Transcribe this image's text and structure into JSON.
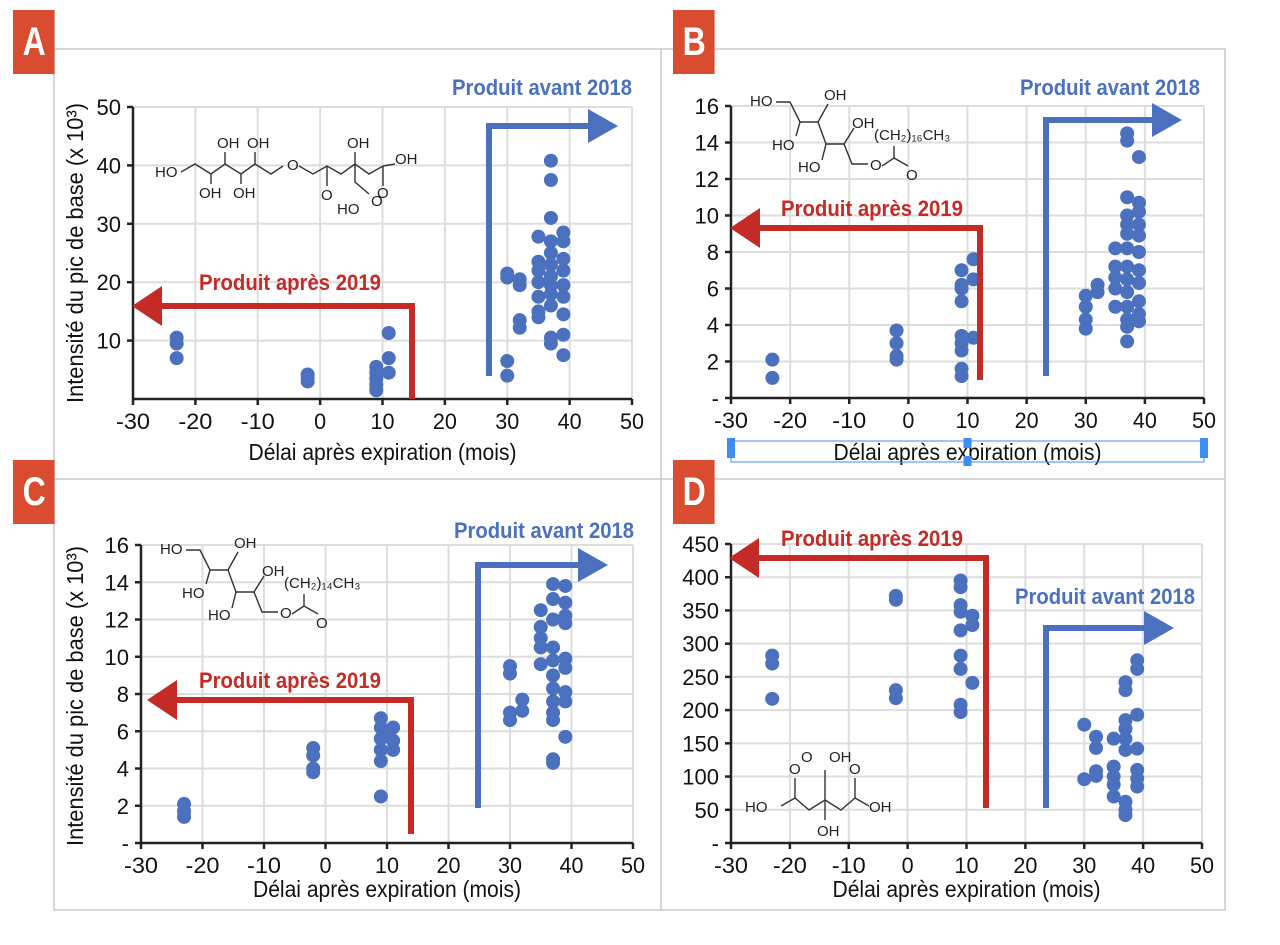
{
  "figure": {
    "colors": {
      "accent_label": "#d94c2f",
      "points": "#4a70be",
      "arrow_before": "#4a70be",
      "arrow_after": "#c42b27",
      "grid": "#dddddd",
      "axis": "#222222",
      "frame": "#c8c8c8",
      "selection": "#3d8ef0"
    },
    "icons": {
      "arrow_before": "arrow-right-icon",
      "arrow_after": "arrow-left-icon"
    }
  },
  "chart_data": [
    {
      "panel": "A",
      "type": "scatter",
      "xlabel": "Délai après expiration (mois)",
      "ylabel": "Intensité du pic de base (x 10³)",
      "xlim": [
        -30,
        50
      ],
      "ylim": [
        0,
        50
      ],
      "xticks": [
        "-30",
        "-20",
        "-10",
        "0",
        "10",
        "20",
        "30",
        "40",
        "50"
      ],
      "yticks": [
        "10",
        "20",
        "30",
        "40",
        "50"
      ],
      "grid": true,
      "annotations": {
        "before": "Produit avant 2018",
        "after": "Produit après 2019"
      },
      "molecule_labels": [
        "HO",
        "OH",
        "OH",
        "OH",
        "OH",
        "OH",
        "O",
        "O",
        "O",
        "OH",
        "HO",
        "O",
        "OH"
      ],
      "points": [
        [
          -23,
          10.5
        ],
        [
          -23,
          9.5
        ],
        [
          -23,
          7
        ],
        [
          -2,
          4.2
        ],
        [
          -2,
          3.6
        ],
        [
          -2,
          3.0
        ],
        [
          9,
          5.5
        ],
        [
          9,
          4.5
        ],
        [
          9,
          3.5
        ],
        [
          9,
          2.5
        ],
        [
          9,
          1.5
        ],
        [
          11,
          11.3
        ],
        [
          11,
          7
        ],
        [
          11,
          4.5
        ],
        [
          30,
          21.5
        ],
        [
          30,
          20.8
        ],
        [
          30,
          6.5
        ],
        [
          30,
          4
        ],
        [
          32,
          20.5
        ],
        [
          32,
          19.5
        ],
        [
          32,
          13.5
        ],
        [
          32,
          12.2
        ],
        [
          35,
          27.8
        ],
        [
          35,
          23.5
        ],
        [
          35,
          22
        ],
        [
          35,
          20
        ],
        [
          35,
          17.5
        ],
        [
          35,
          15
        ],
        [
          35,
          14
        ],
        [
          37,
          40.8
        ],
        [
          37,
          37.5
        ],
        [
          37,
          31
        ],
        [
          37,
          27
        ],
        [
          37,
          25
        ],
        [
          37,
          23
        ],
        [
          37,
          21
        ],
        [
          37,
          19.5
        ],
        [
          37,
          18
        ],
        [
          37,
          16
        ],
        [
          37,
          10.5
        ],
        [
          37,
          9.5
        ],
        [
          39,
          28.5
        ],
        [
          39,
          27
        ],
        [
          39,
          24
        ],
        [
          39,
          22
        ],
        [
          39,
          19.5
        ],
        [
          39,
          17.5
        ],
        [
          39,
          14.5
        ],
        [
          39,
          11
        ],
        [
          39,
          7.5
        ]
      ]
    },
    {
      "panel": "B",
      "type": "scatter",
      "xlabel": "Délai après expiration (mois)",
      "ylabel": "",
      "xlim": [
        -30,
        50
      ],
      "ylim": [
        0,
        16
      ],
      "xticks": [
        "-30",
        "-20",
        "-10",
        "0",
        "10",
        "20",
        "30",
        "40",
        "50"
      ],
      "yticks": [
        "-",
        "2",
        "4",
        "6",
        "8",
        "10",
        "12",
        "14",
        "16"
      ],
      "grid": true,
      "annotations": {
        "before": "Produit avant 2018",
        "after": "Produit après 2019"
      },
      "molecule_labels": [
        "HO",
        "OH",
        "HO",
        "OH",
        "HO",
        "O",
        "O",
        "(CH₂)₁₆CH₃"
      ],
      "points": [
        [
          -23,
          2.1
        ],
        [
          -23,
          1.1
        ],
        [
          -2,
          3.7
        ],
        [
          -2,
          3.0
        ],
        [
          -2,
          2.3
        ],
        [
          -2,
          2.1
        ],
        [
          9,
          7.0
        ],
        [
          9,
          6.2
        ],
        [
          9,
          6.0
        ],
        [
          9,
          5.3
        ],
        [
          9,
          3.4
        ],
        [
          9,
          3.0
        ],
        [
          9,
          2.6
        ],
        [
          9,
          1.6
        ],
        [
          9,
          1.2
        ],
        [
          11,
          7.6
        ],
        [
          11,
          6.5
        ],
        [
          11,
          3.3
        ],
        [
          30,
          5.6
        ],
        [
          30,
          5.0
        ],
        [
          30,
          4.3
        ],
        [
          30,
          3.8
        ],
        [
          32,
          6.2
        ],
        [
          32,
          5.8
        ],
        [
          35,
          8.2
        ],
        [
          35,
          7.2
        ],
        [
          35,
          6.6
        ],
        [
          35,
          6.0
        ],
        [
          35,
          5.0
        ],
        [
          37,
          14.5
        ],
        [
          37,
          14.1
        ],
        [
          37,
          11.0
        ],
        [
          37,
          10.0
        ],
        [
          37,
          9.5
        ],
        [
          37,
          9.0
        ],
        [
          37,
          8.2
        ],
        [
          37,
          7.2
        ],
        [
          37,
          6.5
        ],
        [
          37,
          5.8
        ],
        [
          37,
          5.0
        ],
        [
          37,
          4.3
        ],
        [
          37,
          3.9
        ],
        [
          37,
          3.1
        ],
        [
          39,
          13.2
        ],
        [
          39,
          10.7
        ],
        [
          39,
          10.2
        ],
        [
          39,
          9.5
        ],
        [
          39,
          8.9
        ],
        [
          39,
          8.0
        ],
        [
          39,
          7.0
        ],
        [
          39,
          6.3
        ],
        [
          39,
          5.3
        ],
        [
          39,
          4.6
        ],
        [
          39,
          4.2
        ]
      ]
    },
    {
      "panel": "C",
      "type": "scatter",
      "xlabel": "Délai après expiration (mois)",
      "ylabel": "Intensité du pic de base (x 10³)",
      "xlim": [
        -30,
        50
      ],
      "ylim": [
        0,
        16
      ],
      "xticks": [
        "-30",
        "-20",
        "-10",
        "0",
        "10",
        "20",
        "30",
        "40",
        "50"
      ],
      "yticks": [
        "-",
        "2",
        "4",
        "6",
        "8",
        "10",
        "12",
        "14",
        "16"
      ],
      "grid": true,
      "annotations": {
        "before": "Produit avant 2018",
        "after": "Produit après 2019"
      },
      "molecule_labels": [
        "HO",
        "OH",
        "HO",
        "OH",
        "HO",
        "O",
        "O",
        "(CH₂)₁₄CH₃"
      ],
      "points": [
        [
          -23,
          2.1
        ],
        [
          -23,
          1.7
        ],
        [
          -23,
          1.4
        ],
        [
          -2,
          5.1
        ],
        [
          -2,
          4.7
        ],
        [
          -2,
          4.0
        ],
        [
          -2,
          3.8
        ],
        [
          9,
          6.7
        ],
        [
          9,
          6.2
        ],
        [
          9,
          5.6
        ],
        [
          9,
          5.0
        ],
        [
          9,
          4.4
        ],
        [
          9,
          2.5
        ],
        [
          10,
          5.8
        ],
        [
          11,
          6.2
        ],
        [
          11,
          5.5
        ],
        [
          11,
          5.0
        ],
        [
          30,
          9.5
        ],
        [
          30,
          9.1
        ],
        [
          30,
          7.0
        ],
        [
          30,
          6.6
        ],
        [
          32,
          7.7
        ],
        [
          32,
          7.1
        ],
        [
          35,
          12.5
        ],
        [
          35,
          11.6
        ],
        [
          35,
          11.0
        ],
        [
          35,
          10.5
        ],
        [
          35,
          9.6
        ],
        [
          37,
          13.9
        ],
        [
          37,
          13.1
        ],
        [
          37,
          12.0
        ],
        [
          37,
          10.5
        ],
        [
          37,
          9.8
        ],
        [
          37,
          9.0
        ],
        [
          37,
          8.3
        ],
        [
          37,
          7.6
        ],
        [
          37,
          7.0
        ],
        [
          37,
          6.6
        ],
        [
          37,
          4.5
        ],
        [
          37,
          4.3
        ],
        [
          39,
          13.8
        ],
        [
          39,
          12.9
        ],
        [
          39,
          12.2
        ],
        [
          39,
          11.8
        ],
        [
          39,
          9.9
        ],
        [
          39,
          9.4
        ],
        [
          39,
          8.1
        ],
        [
          39,
          7.6
        ],
        [
          39,
          5.7
        ]
      ]
    },
    {
      "panel": "D",
      "type": "scatter",
      "xlabel": "Délai après expiration (mois)",
      "ylabel": "",
      "xlim": [
        -30,
        50
      ],
      "ylim": [
        0,
        450
      ],
      "xticks": [
        "-30",
        "-20",
        "-10",
        "0",
        "10",
        "20",
        "30",
        "40",
        "50"
      ],
      "yticks": [
        "-",
        "50",
        "100",
        "150",
        "200",
        "250",
        "300",
        "350",
        "400",
        "450"
      ],
      "grid": true,
      "annotations": {
        "before": "Produit avant 2018",
        "after": "Produit après 2019"
      },
      "molecule_labels": [
        "O",
        "OH",
        "O",
        "O",
        "HO",
        "OH",
        "OH"
      ],
      "points": [
        [
          -23,
          282
        ],
        [
          -23,
          270
        ],
        [
          -23,
          217
        ],
        [
          -2,
          372
        ],
        [
          -2,
          366
        ],
        [
          -2,
          230
        ],
        [
          -2,
          218
        ],
        [
          9,
          395
        ],
        [
          9,
          385
        ],
        [
          9,
          358
        ],
        [
          9,
          348
        ],
        [
          9,
          320
        ],
        [
          9,
          282
        ],
        [
          9,
          262
        ],
        [
          9,
          208
        ],
        [
          9,
          197
        ],
        [
          11,
          342
        ],
        [
          11,
          328
        ],
        [
          11,
          241
        ],
        [
          30,
          178
        ],
        [
          30,
          96
        ],
        [
          32,
          160
        ],
        [
          32,
          143
        ],
        [
          32,
          108
        ],
        [
          32,
          101
        ],
        [
          35,
          157
        ],
        [
          35,
          115
        ],
        [
          35,
          100
        ],
        [
          35,
          88
        ],
        [
          35,
          70
        ],
        [
          37,
          242
        ],
        [
          37,
          230
        ],
        [
          37,
          185
        ],
        [
          37,
          172
        ],
        [
          37,
          157
        ],
        [
          37,
          140
        ],
        [
          37,
          62
        ],
        [
          37,
          50
        ],
        [
          37,
          42
        ],
        [
          39,
          275
        ],
        [
          39,
          262
        ],
        [
          39,
          193
        ],
        [
          39,
          142
        ],
        [
          39,
          110
        ],
        [
          39,
          97
        ],
        [
          39,
          85
        ]
      ]
    }
  ]
}
